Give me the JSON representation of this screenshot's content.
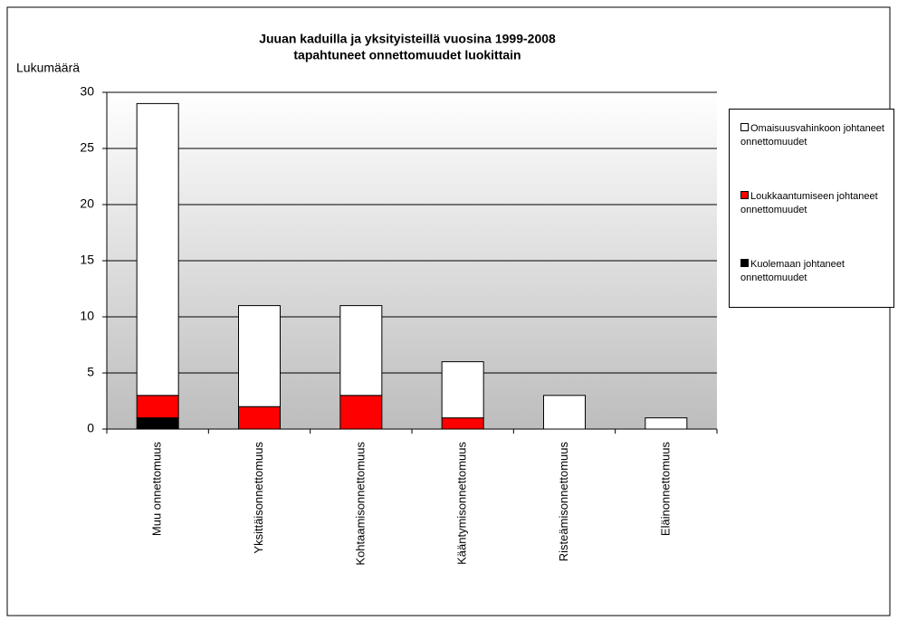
{
  "chart_data": {
    "type": "stacked_bar",
    "title": [
      "Juuan kaduilla ja yksityisteillä vuosina 1999-2008",
      "tapahtuneet onnettomuudet luokittain"
    ],
    "y_label": "Lukumäärä",
    "categories": [
      "Muu onnettomuus",
      "Yksittäisonnettomuus",
      "Kohtaamisonnettomuus",
      "Kääntymisonnettomuus",
      "Risteämisonnettomuus",
      "Eläinonnettomuus"
    ],
    "series": [
      {
        "name": "Omaisuusvahinkoon johtaneet onnettomuudet",
        "color": "#ffffff",
        "values": [
          26,
          9,
          8,
          5,
          3,
          1
        ]
      },
      {
        "name": "Loukkaantumiseen johtaneet onnettomuudet",
        "color": "#ff0000",
        "values": [
          2,
          2,
          3,
          1,
          0,
          0
        ]
      },
      {
        "name": "Kuolemaan johtaneet onnettomuudet",
        "color": "#000000",
        "values": [
          1,
          0,
          0,
          0,
          0,
          0
        ]
      }
    ],
    "ylim": [
      0,
      30
    ],
    "yticks": [
      0,
      5,
      10,
      15,
      20,
      25,
      30
    ],
    "grid": true,
    "legend": "right"
  }
}
